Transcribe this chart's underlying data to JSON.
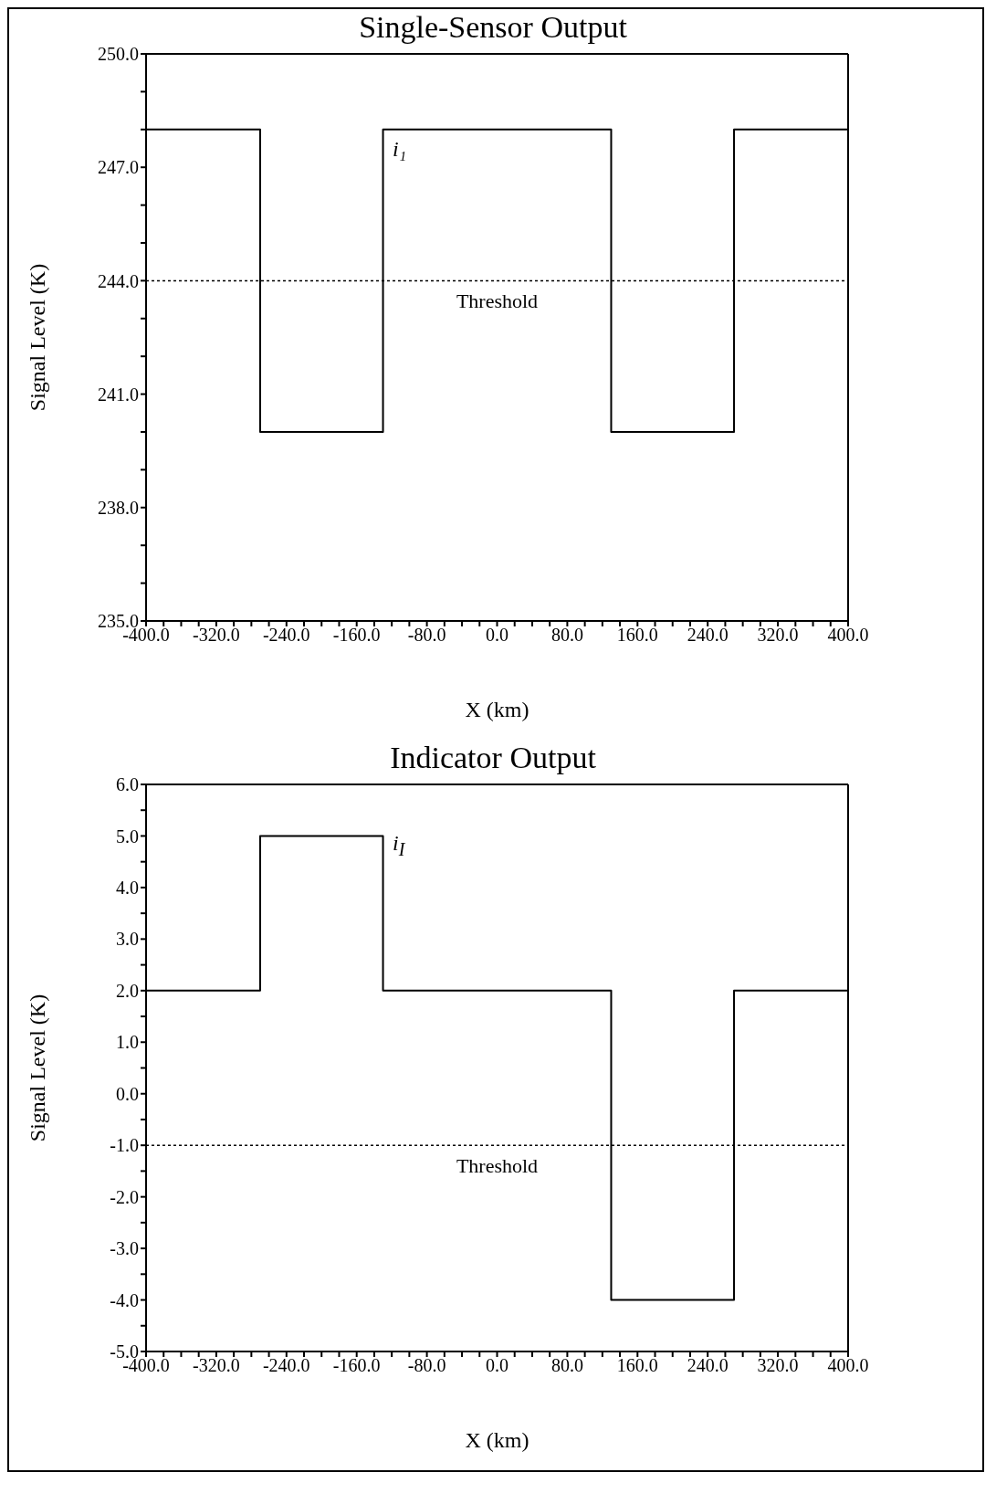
{
  "chart_data": [
    {
      "type": "step",
      "title": "Single-Sensor Output",
      "xlabel": "X (km)",
      "ylabel": "Signal Level (K)",
      "x": [
        -400,
        -270,
        -130,
        130,
        270,
        400
      ],
      "series": [
        {
          "color": "#000000",
          "values": [
            248,
            240,
            248,
            240,
            248,
            248
          ]
        }
      ],
      "xlim": [
        -400,
        400
      ],
      "xticks": [
        {
          "value": -400,
          "label": "-400.0"
        },
        {
          "value": -380,
          "label": null
        },
        {
          "value": -360,
          "label": null
        },
        {
          "value": -340,
          "label": null
        },
        {
          "value": -320,
          "label": "-320.0"
        },
        {
          "value": -300,
          "label": null
        },
        {
          "value": -280,
          "label": null
        },
        {
          "value": -260,
          "label": null
        },
        {
          "value": -240,
          "label": "-240.0"
        },
        {
          "value": -220,
          "label": null
        },
        {
          "value": -200,
          "label": null
        },
        {
          "value": -180,
          "label": null
        },
        {
          "value": -160,
          "label": "-160.0"
        },
        {
          "value": -140,
          "label": null
        },
        {
          "value": -120,
          "label": null
        },
        {
          "value": -100,
          "label": null
        },
        {
          "value": -80,
          "label": "-80.0"
        },
        {
          "value": -60,
          "label": null
        },
        {
          "value": -40,
          "label": null
        },
        {
          "value": -20,
          "label": null
        },
        {
          "value": 0,
          "label": "0.0"
        },
        {
          "value": 20,
          "label": null
        },
        {
          "value": 40,
          "label": null
        },
        {
          "value": 60,
          "label": null
        },
        {
          "value": 80,
          "label": "80.0"
        },
        {
          "value": 100,
          "label": null
        },
        {
          "value": 120,
          "label": null
        },
        {
          "value": 140,
          "label": null
        },
        {
          "value": 160,
          "label": "160.0"
        },
        {
          "value": 180,
          "label": null
        },
        {
          "value": 200,
          "label": null
        },
        {
          "value": 220,
          "label": null
        },
        {
          "value": 240,
          "label": "240.0"
        },
        {
          "value": 260,
          "label": null
        },
        {
          "value": 280,
          "label": null
        },
        {
          "value": 300,
          "label": null
        },
        {
          "value": 320,
          "label": "320.0"
        },
        {
          "value": 340,
          "label": null
        },
        {
          "value": 360,
          "label": null
        },
        {
          "value": 380,
          "label": null
        },
        {
          "value": 400,
          "label": "400.0"
        }
      ],
      "ylim": [
        235,
        250
      ],
      "yticks": [
        {
          "value": 235,
          "label": "235.0"
        },
        {
          "value": 236,
          "label": null
        },
        {
          "value": 237,
          "label": null
        },
        {
          "value": 238,
          "label": "238.0"
        },
        {
          "value": 239,
          "label": null
        },
        {
          "value": 240,
          "label": null
        },
        {
          "value": 241,
          "label": "241.0"
        },
        {
          "value": 242,
          "label": null
        },
        {
          "value": 243,
          "label": null
        },
        {
          "value": 244,
          "label": "244.0"
        },
        {
          "value": 245,
          "label": null
        },
        {
          "value": 246,
          "label": null
        },
        {
          "value": 247,
          "label": "247.0"
        },
        {
          "value": 248,
          "label": null
        },
        {
          "value": 249,
          "label": null
        },
        {
          "value": 250,
          "label": "250.0"
        }
      ],
      "ref_lines": [
        {
          "axis": "y",
          "value": 244,
          "label": "Threshold",
          "line_style": "dotted",
          "color": "#000000"
        }
      ],
      "annotations": [
        "i₁"
      ]
    },
    {
      "type": "step",
      "title": "Indicator Output",
      "xlabel": "X (km)",
      "ylabel": "Signal Level (K)",
      "x": [
        -400,
        -270,
        -130,
        130,
        270,
        400
      ],
      "series": [
        {
          "color": "#000000",
          "values": [
            2,
            5,
            2,
            -4,
            2,
            2
          ]
        }
      ],
      "xlim": [
        -400,
        400
      ],
      "xticks": [
        {
          "value": -400,
          "label": "-400.0"
        },
        {
          "value": -380,
          "label": null
        },
        {
          "value": -360,
          "label": null
        },
        {
          "value": -340,
          "label": null
        },
        {
          "value": -320,
          "label": "-320.0"
        },
        {
          "value": -300,
          "label": null
        },
        {
          "value": -280,
          "label": null
        },
        {
          "value": -260,
          "label": null
        },
        {
          "value": -240,
          "label": "-240.0"
        },
        {
          "value": -220,
          "label": null
        },
        {
          "value": -200,
          "label": null
        },
        {
          "value": -180,
          "label": null
        },
        {
          "value": -160,
          "label": "-160.0"
        },
        {
          "value": -140,
          "label": null
        },
        {
          "value": -120,
          "label": null
        },
        {
          "value": -100,
          "label": null
        },
        {
          "value": -80,
          "label": "-80.0"
        },
        {
          "value": -60,
          "label": null
        },
        {
          "value": -40,
          "label": null
        },
        {
          "value": -20,
          "label": null
        },
        {
          "value": 0,
          "label": "0.0"
        },
        {
          "value": 20,
          "label": null
        },
        {
          "value": 40,
          "label": null
        },
        {
          "value": 60,
          "label": null
        },
        {
          "value": 80,
          "label": "80.0"
        },
        {
          "value": 100,
          "label": null
        },
        {
          "value": 120,
          "label": null
        },
        {
          "value": 140,
          "label": null
        },
        {
          "value": 160,
          "label": "160.0"
        },
        {
          "value": 180,
          "label": null
        },
        {
          "value": 200,
          "label": null
        },
        {
          "value": 220,
          "label": null
        },
        {
          "value": 240,
          "label": "240.0"
        },
        {
          "value": 260,
          "label": null
        },
        {
          "value": 280,
          "label": null
        },
        {
          "value": 300,
          "label": null
        },
        {
          "value": 320,
          "label": "320.0"
        },
        {
          "value": 340,
          "label": null
        },
        {
          "value": 360,
          "label": null
        },
        {
          "value": 380,
          "label": null
        },
        {
          "value": 400,
          "label": "400.0"
        }
      ],
      "ylim": [
        -5,
        6
      ],
      "yticks": [
        {
          "value": -5,
          "label": "-5.0"
        },
        {
          "value": -4.5,
          "label": null
        },
        {
          "value": -4,
          "label": "-4.0"
        },
        {
          "value": -3.5,
          "label": null
        },
        {
          "value": -3,
          "label": "-3.0"
        },
        {
          "value": -2.5,
          "label": null
        },
        {
          "value": -2,
          "label": "-2.0"
        },
        {
          "value": -1.5,
          "label": null
        },
        {
          "value": -1,
          "label": "-1.0"
        },
        {
          "value": -0.5,
          "label": null
        },
        {
          "value": 0,
          "label": "0.0"
        },
        {
          "value": 0.5,
          "label": null
        },
        {
          "value": 1,
          "label": "1.0"
        },
        {
          "value": 1.5,
          "label": null
        },
        {
          "value": 2,
          "label": "2.0"
        },
        {
          "value": 2.5,
          "label": null
        },
        {
          "value": 3,
          "label": "3.0"
        },
        {
          "value": 3.5,
          "label": null
        },
        {
          "value": 4,
          "label": "4.0"
        },
        {
          "value": 4.5,
          "label": null
        },
        {
          "value": 5,
          "label": "5.0"
        },
        {
          "value": 5.5,
          "label": null
        },
        {
          "value": 6,
          "label": "6.0"
        }
      ],
      "ref_lines": [
        {
          "axis": "y",
          "value": -1,
          "label": "Threshold",
          "line_style": "dotted",
          "color": "#000000"
        }
      ],
      "annotations": [
        "i$_{I}$"
      ]
    }
  ]
}
